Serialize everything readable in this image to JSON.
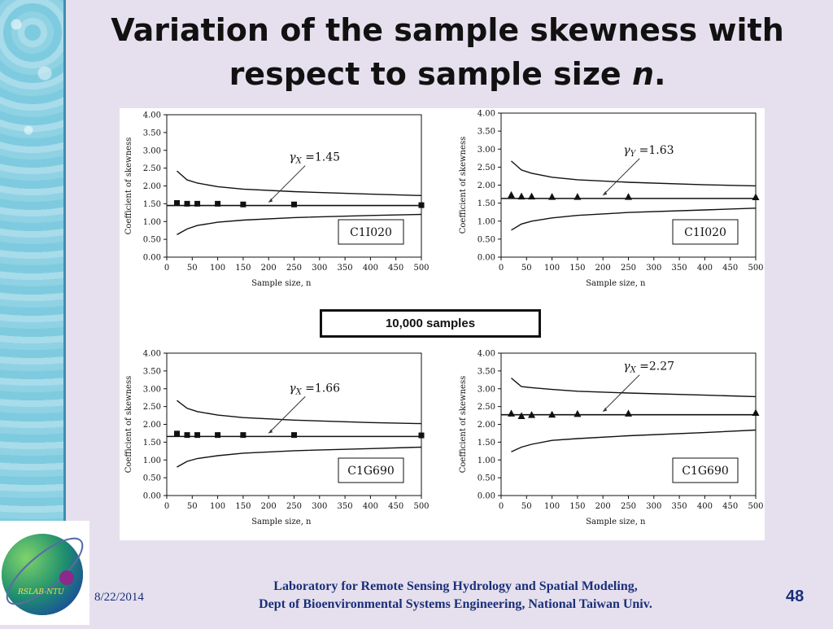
{
  "slide": {
    "title_main": "Variation of the sample skewness with respect to sample size ",
    "title_n": "n",
    "title_end": ".",
    "samples_label": "10,000 samples",
    "footer_date": "8/22/2014",
    "footer_line1": "Laboratory for Remote Sensing Hydrology and Spatial Modeling,",
    "footer_line2": "Dept of Bioenvironmental Systems Engineering,  National Taiwan Univ.",
    "slide_number": "48",
    "logo_text": "RSLAB-NTU"
  },
  "colors": {
    "background": "#e6e0ee",
    "footer_text": "#1a2f7a",
    "series": "#111111"
  },
  "chart_data": [
    {
      "type": "line",
      "panel": "top-left",
      "xlabel": "Sample size, n",
      "ylabel": "Coefficient of skewness",
      "xlim": [
        0,
        500
      ],
      "ylim": [
        0,
        4
      ],
      "xticks": [
        0,
        50,
        100,
        150,
        200,
        250,
        300,
        350,
        400,
        450,
        500
      ],
      "yticks": [
        0,
        0.5,
        1,
        1.5,
        2,
        2.5,
        3,
        3.5,
        4
      ],
      "box_label": "C1I020",
      "gamma_label": "1.45",
      "gamma_sub": "X",
      "marker": "square",
      "population": 1.45,
      "upper": [
        [
          20,
          2.42
        ],
        [
          40,
          2.17
        ],
        [
          60,
          2.08
        ],
        [
          100,
          1.98
        ],
        [
          150,
          1.91
        ],
        [
          250,
          1.84
        ],
        [
          400,
          1.77
        ],
        [
          500,
          1.73
        ]
      ],
      "lower": [
        [
          20,
          0.63
        ],
        [
          40,
          0.79
        ],
        [
          60,
          0.89
        ],
        [
          100,
          0.98
        ],
        [
          150,
          1.04
        ],
        [
          250,
          1.11
        ],
        [
          400,
          1.17
        ],
        [
          500,
          1.2
        ]
      ],
      "means": [
        [
          20,
          1.52
        ],
        [
          40,
          1.5
        ],
        [
          60,
          1.5
        ],
        [
          100,
          1.5
        ],
        [
          150,
          1.48
        ],
        [
          250,
          1.48
        ],
        [
          500,
          1.46
        ]
      ]
    },
    {
      "type": "line",
      "panel": "top-right",
      "xlabel": "Sample size, n",
      "ylabel": "Coefficient of skewness",
      "xlim": [
        0,
        500
      ],
      "ylim": [
        0,
        4
      ],
      "xticks": [
        0,
        50,
        100,
        150,
        200,
        250,
        300,
        350,
        400,
        450,
        500
      ],
      "yticks": [
        0,
        0.5,
        1,
        1.5,
        2,
        2.5,
        3,
        3.5,
        4
      ],
      "box_label": "C1I020",
      "gamma_label": "1.63",
      "gamma_sub": "Y",
      "marker": "triangle",
      "population": 1.63,
      "upper": [
        [
          20,
          2.67
        ],
        [
          40,
          2.42
        ],
        [
          60,
          2.33
        ],
        [
          100,
          2.22
        ],
        [
          150,
          2.15
        ],
        [
          250,
          2.08
        ],
        [
          400,
          2.01
        ],
        [
          500,
          1.98
        ]
      ],
      "lower": [
        [
          20,
          0.75
        ],
        [
          40,
          0.92
        ],
        [
          60,
          1.0
        ],
        [
          100,
          1.09
        ],
        [
          150,
          1.16
        ],
        [
          250,
          1.24
        ],
        [
          400,
          1.31
        ],
        [
          500,
          1.36
        ]
      ],
      "means": [
        [
          20,
          1.72
        ],
        [
          40,
          1.68
        ],
        [
          60,
          1.68
        ],
        [
          100,
          1.67
        ],
        [
          150,
          1.67
        ],
        [
          250,
          1.67
        ],
        [
          500,
          1.66
        ]
      ]
    },
    {
      "type": "line",
      "panel": "bottom-left",
      "xlabel": "Sample size, n",
      "ylabel": "Coefficient of skewness",
      "xlim": [
        0,
        500
      ],
      "ylim": [
        0,
        4
      ],
      "xticks": [
        0,
        50,
        100,
        150,
        200,
        250,
        300,
        350,
        400,
        450,
        500
      ],
      "yticks": [
        0,
        0.5,
        1,
        1.5,
        2,
        2.5,
        3,
        3.5,
        4
      ],
      "box_label": "C1G690",
      "gamma_label": "1.66",
      "gamma_sub": "X",
      "marker": "square",
      "population": 1.66,
      "upper": [
        [
          20,
          2.67
        ],
        [
          40,
          2.45
        ],
        [
          60,
          2.36
        ],
        [
          100,
          2.26
        ],
        [
          150,
          2.19
        ],
        [
          250,
          2.12
        ],
        [
          400,
          2.05
        ],
        [
          500,
          2.02
        ]
      ],
      "lower": [
        [
          20,
          0.8
        ],
        [
          40,
          0.96
        ],
        [
          60,
          1.04
        ],
        [
          100,
          1.12
        ],
        [
          150,
          1.19
        ],
        [
          250,
          1.26
        ],
        [
          400,
          1.32
        ],
        [
          500,
          1.36
        ]
      ],
      "means": [
        [
          20,
          1.74
        ],
        [
          40,
          1.7
        ],
        [
          60,
          1.7
        ],
        [
          100,
          1.7
        ],
        [
          150,
          1.7
        ],
        [
          250,
          1.7
        ],
        [
          500,
          1.69
        ]
      ]
    },
    {
      "type": "line",
      "panel": "bottom-right",
      "xlabel": "Sample size, n",
      "ylabel": "Coefficient of skewness",
      "xlim": [
        0,
        500
      ],
      "ylim": [
        0,
        4
      ],
      "xticks": [
        0,
        50,
        100,
        150,
        200,
        250,
        300,
        350,
        400,
        450,
        500
      ],
      "yticks": [
        0,
        0.5,
        1,
        1.5,
        2,
        2.5,
        3,
        3.5,
        4
      ],
      "box_label": "C1G690",
      "gamma_label": "2.27",
      "gamma_sub": "X",
      "marker": "triangle",
      "population": 2.27,
      "upper": [
        [
          20,
          3.3
        ],
        [
          40,
          3.06
        ],
        [
          60,
          3.03
        ],
        [
          100,
          2.98
        ],
        [
          150,
          2.93
        ],
        [
          250,
          2.88
        ],
        [
          400,
          2.82
        ],
        [
          500,
          2.78
        ]
      ],
      "lower": [
        [
          20,
          1.23
        ],
        [
          40,
          1.36
        ],
        [
          60,
          1.44
        ],
        [
          100,
          1.55
        ],
        [
          150,
          1.6
        ],
        [
          250,
          1.68
        ],
        [
          400,
          1.77
        ],
        [
          500,
          1.84
        ]
      ],
      "means": [
        [
          20,
          2.3
        ],
        [
          40,
          2.23
        ],
        [
          60,
          2.26
        ],
        [
          100,
          2.27
        ],
        [
          150,
          2.29
        ],
        [
          250,
          2.3
        ],
        [
          500,
          2.32
        ]
      ]
    }
  ]
}
